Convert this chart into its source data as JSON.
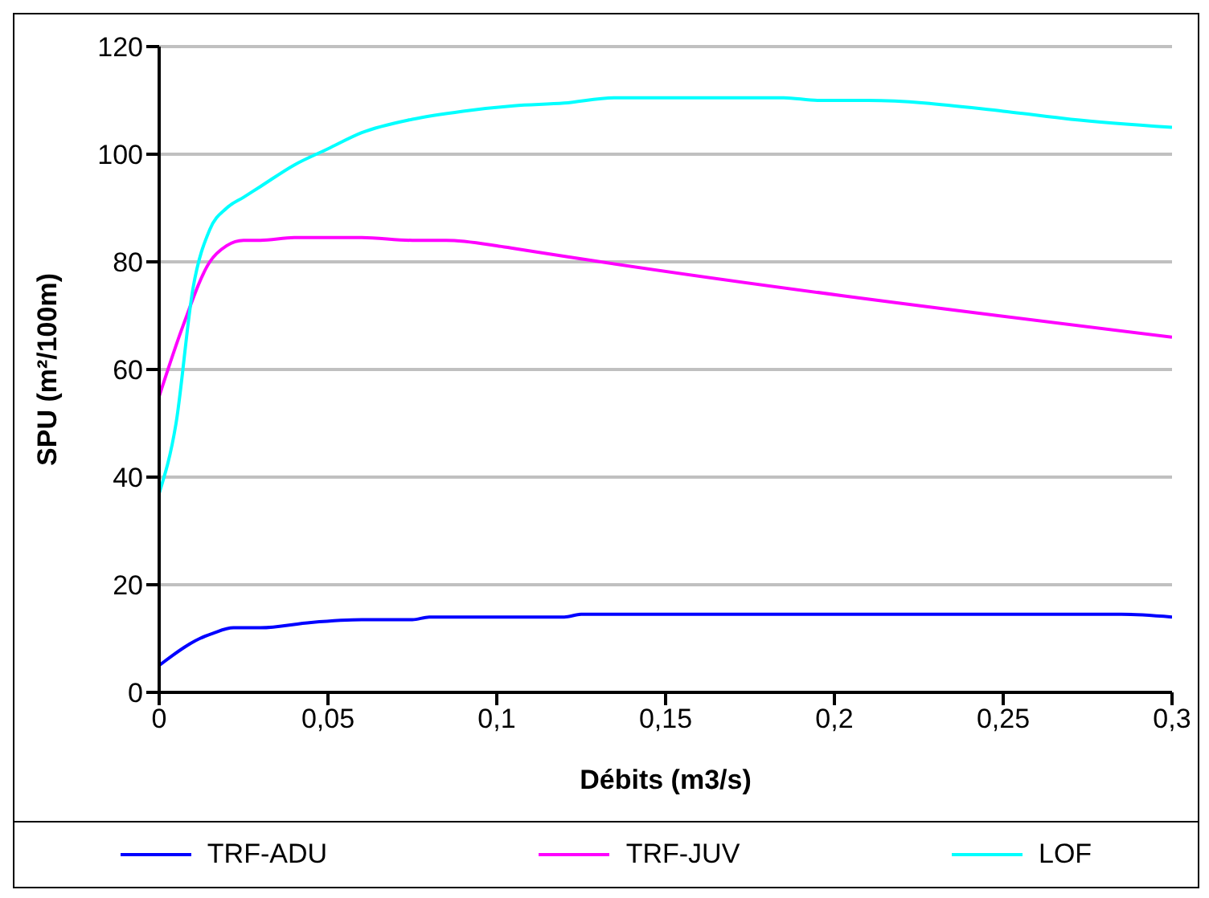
{
  "chart_data": {
    "type": "line",
    "xlabel": "Débits (m3/s)",
    "ylabel": "SPU (m²/100m)",
    "xlim": [
      0,
      0.3
    ],
    "xticks": [
      0,
      {
        "value": 0.05,
        "label": "0,05"
      },
      {
        "value": 0.1,
        "label": "0,1"
      },
      {
        "value": 0.15,
        "label": "0,15"
      },
      {
        "value": 0.2,
        "label": "0,2"
      },
      {
        "value": 0.25,
        "label": "0,25"
      },
      {
        "value": 0.3,
        "label": "0,3"
      }
    ],
    "ylim": [
      0,
      120
    ],
    "yticks": [
      0,
      20,
      40,
      60,
      80,
      100,
      120
    ],
    "grid": "y",
    "legend": "bottom",
    "marker": "none",
    "series": [
      {
        "name": "TRF-ADU",
        "color": "#0000ff",
        "x": [
          0,
          0.012,
          0.016,
          0.022,
          0.03,
          0.045,
          0.06,
          0.075,
          0.08,
          0.12,
          0.125,
          0.285,
          0.3
        ],
        "values": [
          5,
          10,
          11,
          12,
          12,
          13,
          13.5,
          13.5,
          14,
          14,
          14.5,
          14.5,
          14
        ]
      },
      {
        "name": "TRF-JUV",
        "color": "#ff00ff",
        "x": [
          0,
          0.007,
          0.015,
          0.02,
          0.025,
          0.03,
          0.04,
          0.06,
          0.075,
          0.085,
          0.1,
          0.105,
          0.3
        ],
        "values": [
          55,
          68,
          80,
          83,
          84,
          84,
          84.5,
          84.5,
          84,
          84,
          83,
          82.5,
          66
        ]
      },
      {
        "name": "LOF",
        "color": "#00ffff",
        "x": [
          0,
          0.005,
          0.01,
          0.015,
          0.02,
          0.025,
          0.03,
          0.04,
          0.05,
          0.06,
          0.075,
          0.09,
          0.105,
          0.12,
          0.135,
          0.15,
          0.165,
          0.185,
          0.195,
          0.21,
          0.25,
          0.27,
          0.3
        ],
        "values": [
          37,
          50,
          75,
          86,
          90,
          92,
          94,
          98,
          101,
          104,
          106.5,
          108,
          109,
          109.5,
          110.5,
          110.5,
          110.5,
          110.5,
          110,
          110,
          108,
          106.5,
          105
        ]
      }
    ]
  }
}
